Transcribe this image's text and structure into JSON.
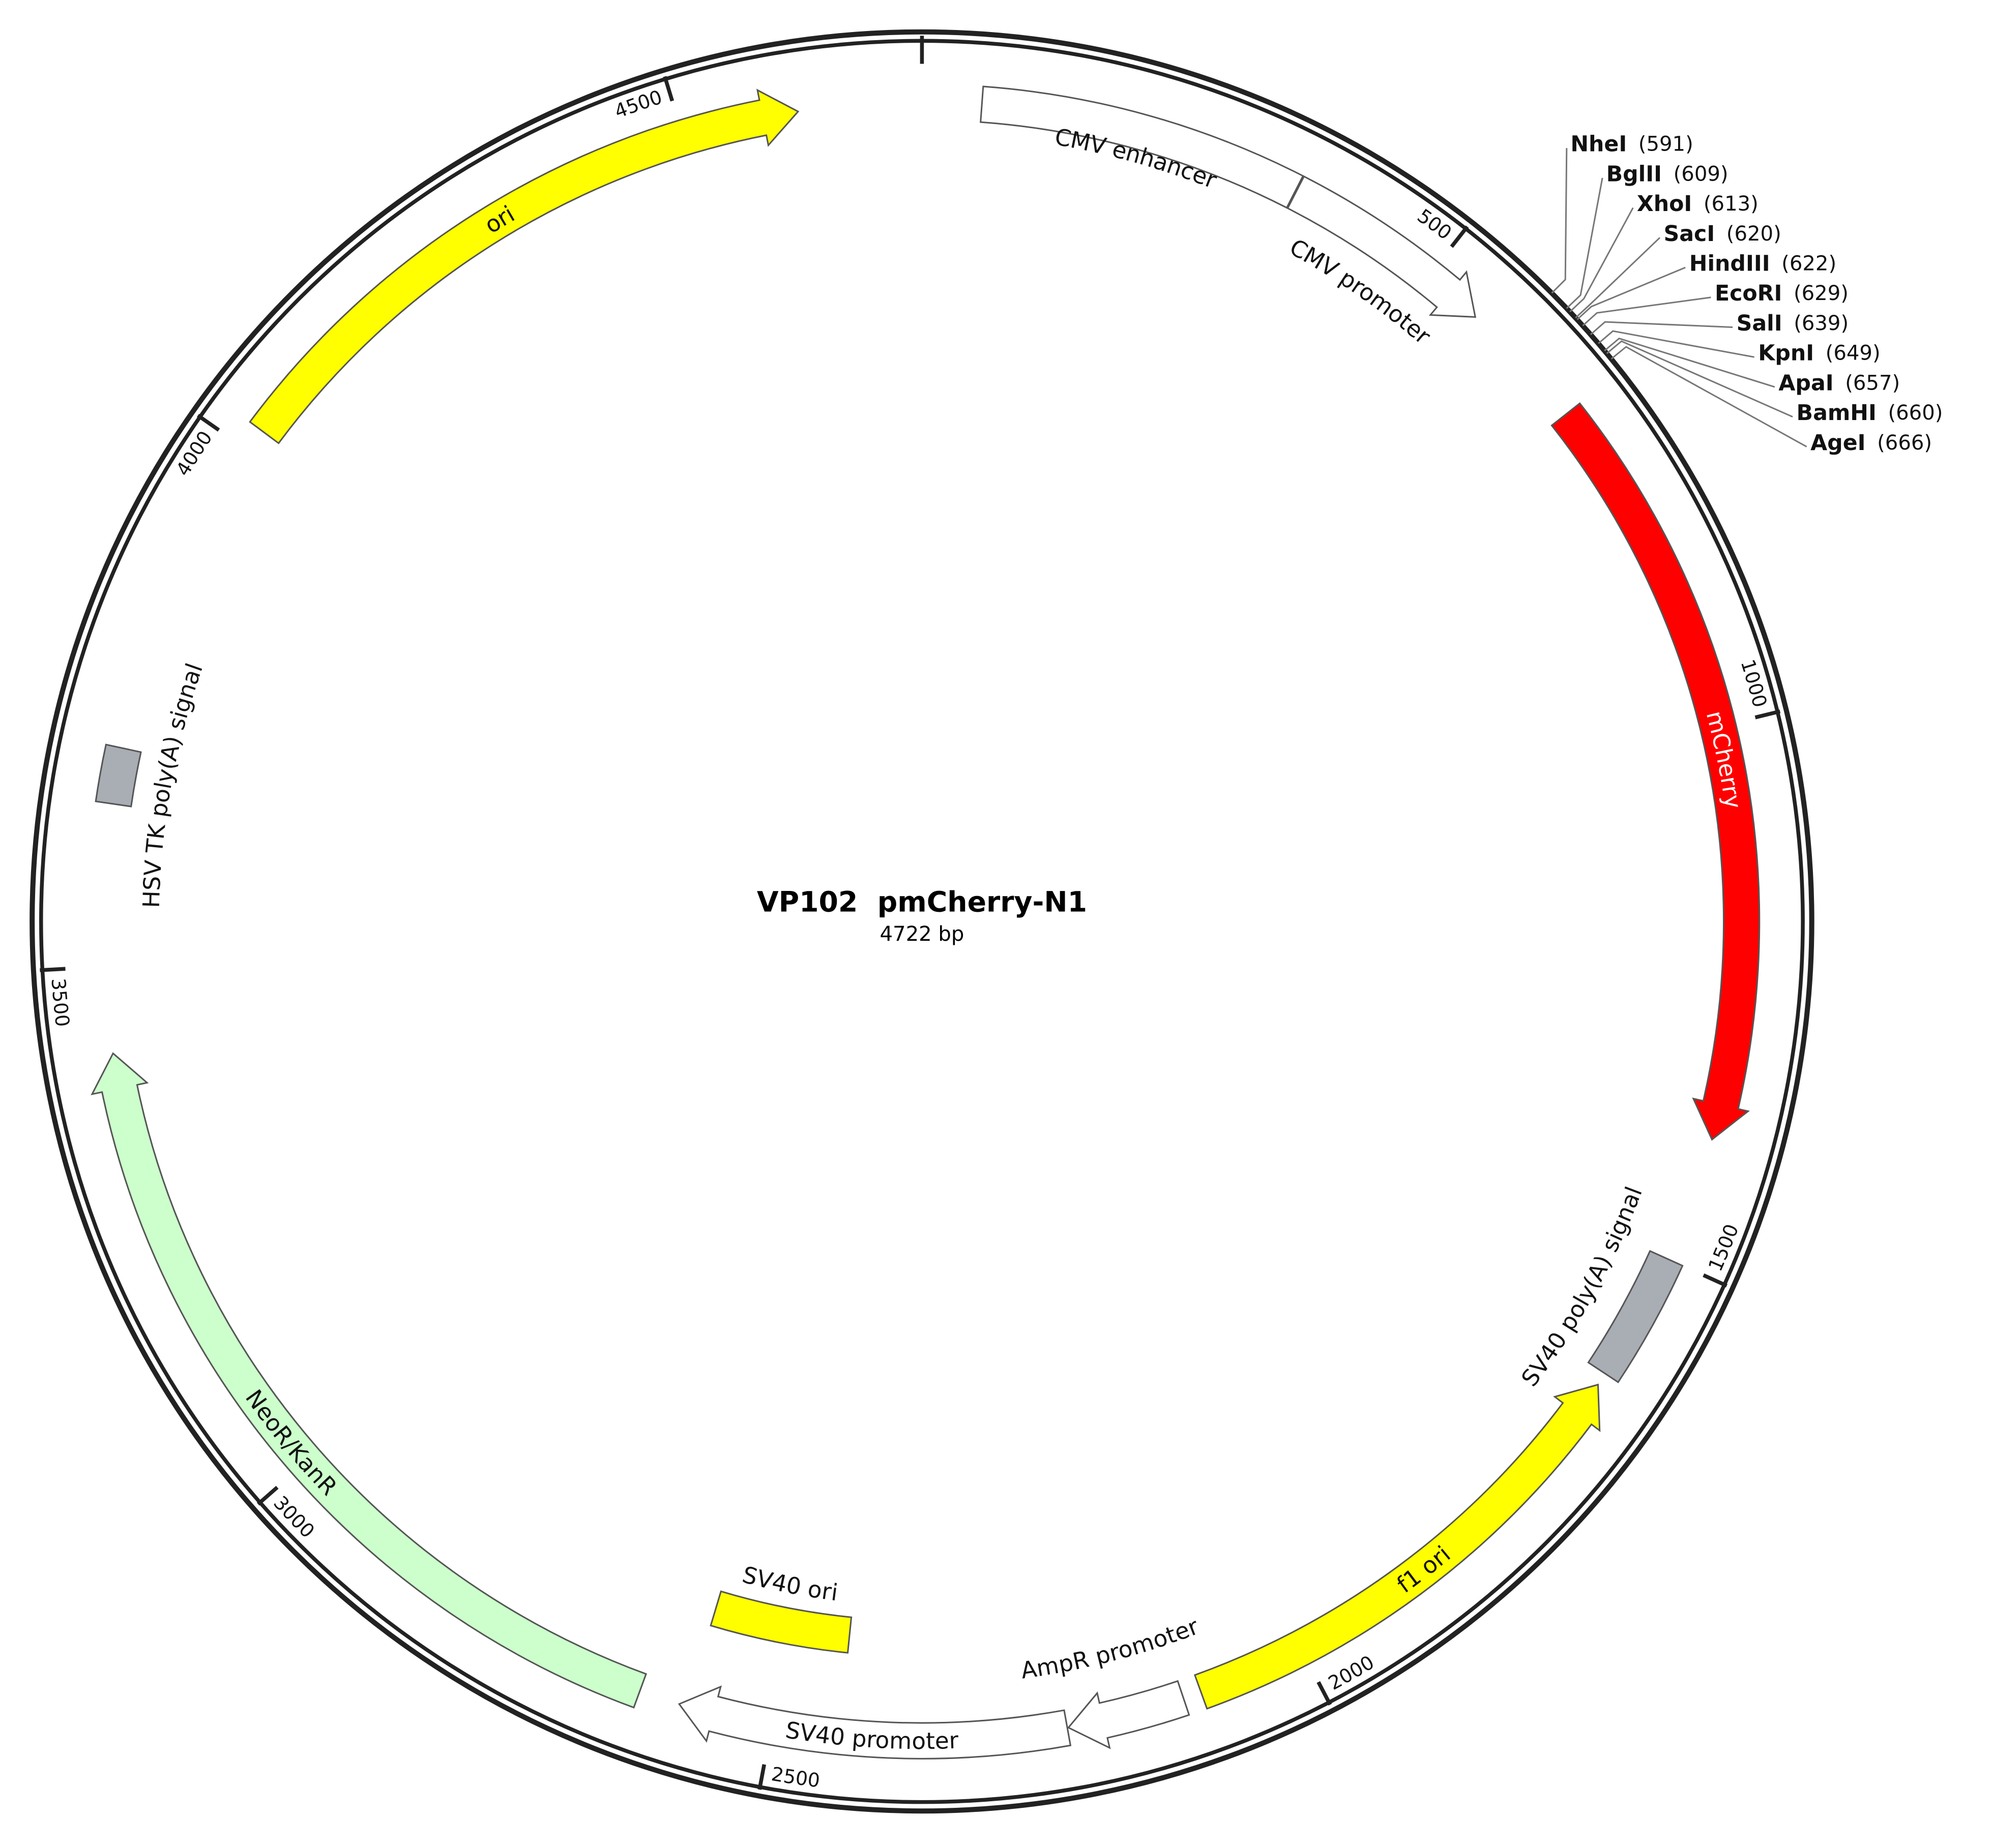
{
  "title": "VP102  pmCherry-N1",
  "subtitle": "4722 bp",
  "length": 4722,
  "features": [
    {
      "name": "CMV enhancer",
      "start": 55,
      "end": 355,
      "direction": "none",
      "color": "#ffffff"
    },
    {
      "name": "CMV promoter",
      "start": 356,
      "end": 557,
      "direction": "forward",
      "color": "#ffffff"
    },
    {
      "name": "mCherry",
      "start": 679,
      "end": 1383,
      "direction": "forward",
      "color": "#ff0000"
    },
    {
      "name": "SV40 poly(A) signal",
      "start": 1500,
      "end": 1620,
      "direction": "none",
      "color": "#a9adb4"
    },
    {
      "name": "f1 ori",
      "start": 1632,
      "end": 2100,
      "direction": "reverse",
      "color": "#ffff00"
    },
    {
      "name": "AmpR promoter",
      "start": 2117,
      "end": 2226,
      "direction": "forward",
      "color": "#ffffff"
    },
    {
      "name": "SV40 promoter",
      "start": 2227,
      "end": 2587,
      "direction": "forward",
      "color": "#ffffff"
    },
    {
      "name": "SV40 ori",
      "start": 2437,
      "end": 2580,
      "direction": "none",
      "color": "#ffff00"
    },
    {
      "name": "NeoR/KanR",
      "start": 2625,
      "end": 3420,
      "direction": "forward",
      "color": "#ccffcc"
    },
    {
      "name": "HSV TK poly(A) signal",
      "start": 3650,
      "end": 3702,
      "direction": "none",
      "color": "#a9adb4"
    },
    {
      "name": "ori",
      "start": 4022,
      "end": 4608,
      "direction": "forward",
      "color": "#ffff00"
    }
  ],
  "sites": [
    {
      "name": "NheI",
      "position": 591,
      "label": "(591)"
    },
    {
      "name": "BglII",
      "position": 609,
      "label": "(609)"
    },
    {
      "name": "XhoI",
      "position": 613,
      "label": "(613)"
    },
    {
      "name": "SacI",
      "position": 620,
      "label": "(620)"
    },
    {
      "name": "HindIII",
      "position": 622,
      "label": "(622)"
    },
    {
      "name": "EcoRI",
      "position": 629,
      "label": "(629)"
    },
    {
      "name": "SalI",
      "position": 639,
      "label": "(639)"
    },
    {
      "name": "KpnI",
      "position": 649,
      "label": "(649)"
    },
    {
      "name": "ApaI",
      "position": 657,
      "label": "(657)"
    },
    {
      "name": "BamHI",
      "position": 660,
      "label": "(660)"
    },
    {
      "name": "AgeI",
      "position": 666,
      "label": "(666)"
    }
  ],
  "ticks": [
    500,
    1000,
    1500,
    2000,
    2500,
    3000,
    3500,
    4000,
    4500
  ]
}
